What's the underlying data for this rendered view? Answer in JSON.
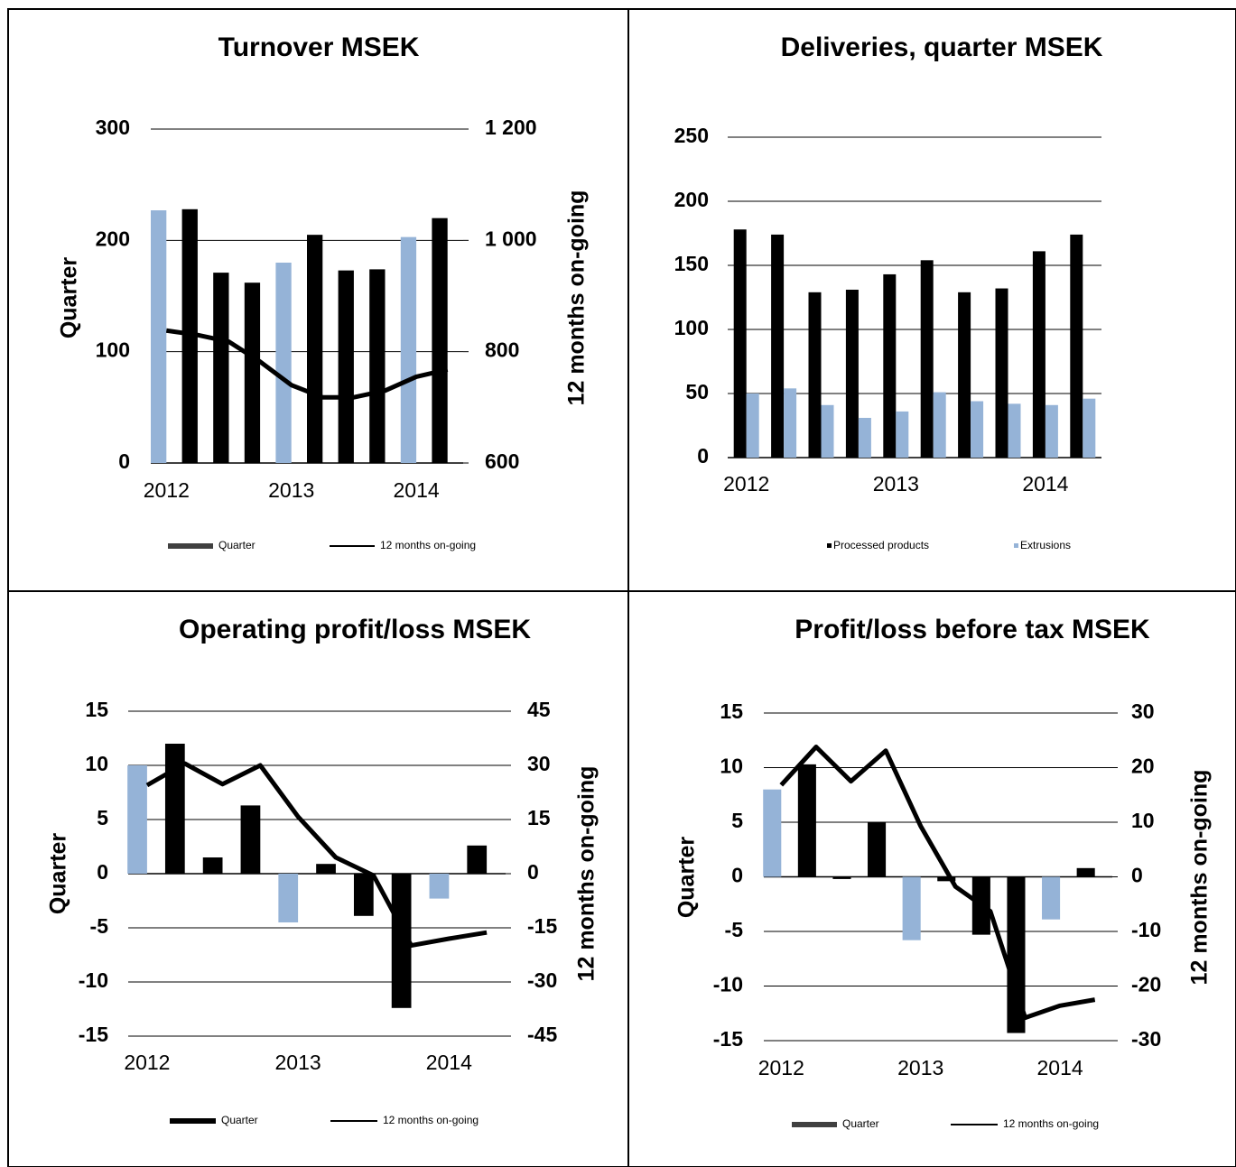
{
  "chart_data": [
    {
      "type": "bar",
      "title": "Turnover MSEK",
      "y_label": "Quarter",
      "y2_label": "12 months on-going",
      "categories": [
        "2012",
        null,
        null,
        null,
        "2013",
        null,
        null,
        null,
        "2014",
        null
      ],
      "series": [
        {
          "name": "Quarter",
          "type": "bar",
          "color": "#404040",
          "colors": [
            "#95b3d7",
            "#000000",
            "#000000",
            "#000000",
            "#95b3d7",
            "#000000",
            "#000000",
            "#000000",
            "#95b3d7",
            "#000000"
          ],
          "values": [
            227,
            228,
            171,
            162,
            180,
            205,
            173,
            174,
            203,
            220
          ]
        },
        {
          "name": "12 months on-going",
          "type": "line",
          "axis": "y2",
          "color": "#000000",
          "values": [
            838,
            830,
            818,
            782,
            740,
            718,
            718,
            730,
            755,
            768
          ]
        }
      ],
      "ylim": [
        0,
        300
      ],
      "yticks": [
        0,
        100,
        200,
        300
      ],
      "y2lim": [
        600,
        1200
      ],
      "y2ticks": [
        600,
        800,
        {
          "value": 1000,
          "label": "1 000"
        },
        {
          "value": 1200,
          "label": "1 200"
        }
      ],
      "grid": true
    },
    {
      "type": "bar",
      "title": "Deliveries, quarter MSEK",
      "categories": [
        "2012",
        null,
        null,
        null,
        "2013",
        null,
        null,
        null,
        "2014",
        null
      ],
      "series": [
        {
          "name": "Processed products",
          "type": "bar",
          "color": "#000000",
          "values": [
            178,
            174,
            129,
            131,
            143,
            154,
            129,
            132,
            161,
            174
          ]
        },
        {
          "name": "Extrusions",
          "type": "bar",
          "color": "#95b3d7",
          "values": [
            50,
            54,
            41,
            31,
            36,
            51,
            44,
            42,
            41,
            46
          ]
        }
      ],
      "ylim": [
        0,
        250
      ],
      "yticks": [
        0,
        50,
        100,
        150,
        200,
        250
      ],
      "grid": true
    },
    {
      "type": "bar",
      "title": "Operating profit/loss MSEK",
      "y_label": "Quarter",
      "y2_label": "12 months on-going",
      "categories": [
        "2012",
        null,
        null,
        null,
        "2013",
        null,
        null,
        null,
        "2014",
        null
      ],
      "series": [
        {
          "name": "Quarter",
          "type": "bar",
          "color": "#000000",
          "colors": [
            "#95b3d7",
            "#000000",
            "#000000",
            "#000000",
            "#95b3d7",
            "#000000",
            "#000000",
            "#000000",
            "#95b3d7",
            "#000000"
          ],
          "values": [
            10,
            12,
            1.5,
            6.3,
            -4.5,
            0.9,
            -3.9,
            -12.4,
            -2.3,
            2.6
          ]
        },
        {
          "name": "12 months on-going",
          "type": "line",
          "axis": "y2",
          "color": "#000000",
          "values": [
            24.5,
            30.5,
            24.8,
            30,
            15.8,
            4.5,
            -0.5,
            -19.9,
            -18,
            -16.3
          ]
        }
      ],
      "ylim": [
        -15,
        15
      ],
      "yticks": [
        -15,
        -10,
        -5,
        0,
        5,
        10,
        15
      ],
      "y2lim": [
        -45,
        45
      ],
      "y2ticks": [
        -45,
        -30,
        -15,
        0,
        15,
        30,
        45
      ],
      "grid": true
    },
    {
      "type": "bar",
      "title": "Profit/loss before tax MSEK",
      "y_label": "Quarter",
      "y2_label": "12 months on-going",
      "categories": [
        "2012",
        null,
        null,
        null,
        "2013",
        null,
        null,
        null,
        "2014",
        null
      ],
      "series": [
        {
          "name": "Quarter",
          "type": "bar",
          "color": "#404040",
          "colors": [
            "#95b3d7",
            "#000000",
            "#000000",
            "#000000",
            "#95b3d7",
            "#000000",
            "#000000",
            "#000000",
            "#95b3d7",
            "#000000"
          ],
          "values": [
            8,
            10.3,
            -0.2,
            5,
            -5.8,
            -0.4,
            -5.3,
            -14.3,
            -3.9,
            0.8
          ]
        },
        {
          "name": "12 months on-going",
          "type": "line",
          "axis": "y2",
          "color": "#000000",
          "values": [
            16.8,
            23.8,
            17.5,
            23.1,
            9.3,
            -1.8,
            -6.3,
            -25.8,
            -23.6,
            -22.5
          ]
        }
      ],
      "ylim": [
        -15,
        15
      ],
      "yticks": [
        -15,
        -10,
        -5,
        0,
        5,
        10,
        15
      ],
      "y2lim": [
        -30,
        30
      ],
      "y2ticks": [
        -30,
        -20,
        -10,
        0,
        10,
        20,
        30
      ],
      "grid": true
    }
  ]
}
